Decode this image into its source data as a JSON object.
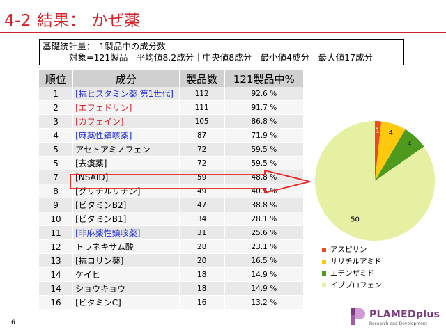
{
  "title": "4-2 結果： かぜ薬",
  "stats": {
    "line1": "基礎統計量：　1製品中の成分数",
    "line2": "対象=121製品｜平均値8.2成分｜中央値8成分｜最小値4成分｜最大値17成分"
  },
  "table": {
    "headers": [
      "順位",
      "成分",
      "製品数",
      "121製品中%"
    ],
    "rows": [
      {
        "rank": "1",
        "component": "[抗ヒスタミン薬 第1世代]",
        "count": "112",
        "pct": "92.6 %",
        "color": "blue"
      },
      {
        "rank": "2",
        "component": "[エフェドリン]",
        "count": "111",
        "pct": "91.7 %",
        "color": "red"
      },
      {
        "rank": "3",
        "component": "[カフェイン]",
        "count": "105",
        "pct": "86.8 %",
        "color": "red"
      },
      {
        "rank": "4",
        "component": "[麻薬性鎮咳薬]",
        "count": "87",
        "pct": "71.9 %",
        "color": "blue"
      },
      {
        "rank": "5",
        "component": "アセトアミノフェン",
        "count": "72",
        "pct": "59.5 %",
        "color": "black"
      },
      {
        "rank": "5",
        "component": "[去痰薬]",
        "count": "72",
        "pct": "59.5 %",
        "color": "black"
      },
      {
        "rank": "7",
        "component": "[NSAID]",
        "count": "59",
        "pct": "48.8 %",
        "color": "black"
      },
      {
        "rank": "8",
        "component": "[グリチルリチン]",
        "count": "49",
        "pct": "40.5 %",
        "color": "black"
      },
      {
        "rank": "9",
        "component": "[ビタミンB2]",
        "count": "47",
        "pct": "38.8 %",
        "color": "black"
      },
      {
        "rank": "10",
        "component": "[ビタミンB1]",
        "count": "34",
        "pct": "28.1 %",
        "color": "black"
      },
      {
        "rank": "11",
        "component": "[非麻薬性鎮咳薬]",
        "count": "31",
        "pct": "25.6 %",
        "color": "blue"
      },
      {
        "rank": "12",
        "component": "トラネキサム酸",
        "count": "28",
        "pct": "23.1 %",
        "color": "black"
      },
      {
        "rank": "13",
        "component": "[抗コリン薬]",
        "count": "20",
        "pct": "16.5 %",
        "color": "black"
      },
      {
        "rank": "14",
        "component": "ケイヒ",
        "count": "18",
        "pct": "14.9 %",
        "color": "black"
      },
      {
        "rank": "14",
        "component": "ショウキョウ",
        "count": "18",
        "pct": "14.9 %",
        "color": "black"
      },
      {
        "rank": "16",
        "component": "[ビタミンC]",
        "count": "16",
        "pct": "13.2 %",
        "color": "black"
      }
    ]
  },
  "chart_data": {
    "type": "pie",
    "categories": [
      "アスピリン",
      "サリチルアミド",
      "エテンザミド",
      "イブプロフェン"
    ],
    "values": [
      1,
      4,
      4,
      50
    ],
    "colors": [
      "#ec4a1c",
      "#ffc90e",
      "#4e9a1e",
      "#e6f0a3"
    ],
    "legend_position": "bottom"
  },
  "page_number": "6",
  "logo": {
    "name": "PLAMEDplus",
    "subtitle": "Research and Development"
  }
}
